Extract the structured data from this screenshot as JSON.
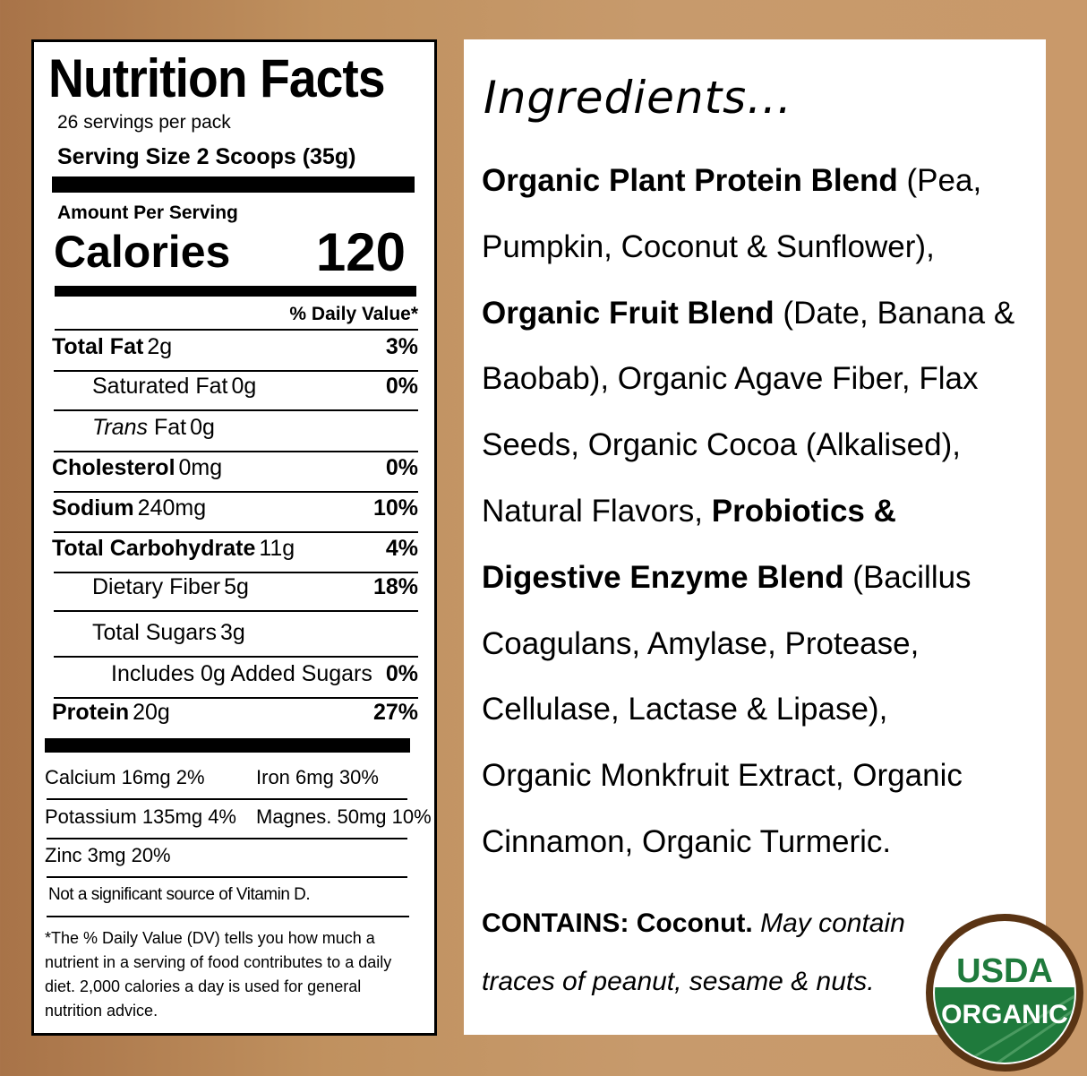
{
  "nutrition": {
    "title": "Nutrition Facts",
    "servings": "26 servings per pack",
    "serving_size": "Serving Size 2 Scoops (35g)",
    "amount_per_serving": "Amount Per Serving",
    "calories_label": "Calories",
    "calories_value": "120",
    "dv_header": "% Daily Value*",
    "rows": [
      {
        "name": "Total Fat",
        "amount": "2g",
        "dv": "3%",
        "bold": true,
        "indent": 0
      },
      {
        "name": "Saturated Fat",
        "amount": "0g",
        "dv": "0%",
        "bold": false,
        "indent": 1
      },
      {
        "name": "Trans",
        "name2": " Fat",
        "amount": "0g",
        "dv": "",
        "bold": false,
        "indent": 1,
        "italic": true
      },
      {
        "name": "Cholesterol",
        "amount": "0mg",
        "dv": "0%",
        "bold": true,
        "indent": 0
      },
      {
        "name": "Sodium",
        "amount": "240mg",
        "dv": "10%",
        "bold": true,
        "indent": 0
      },
      {
        "name": "Total Carbohydrate",
        "amount": "11g",
        "dv": "4%",
        "bold": true,
        "indent": 0
      },
      {
        "name": "Dietary Fiber",
        "amount": "5g",
        "dv": "18%",
        "bold": false,
        "indent": 1
      },
      {
        "name": "Total Sugars",
        "amount": "3g",
        "dv": "",
        "bold": false,
        "indent": 1
      },
      {
        "name": "Includes 0g Added Sugars",
        "amount": "",
        "dv": "0%",
        "bold": false,
        "indent": 2
      },
      {
        "name": "Protein",
        "amount": "20g",
        "dv": "27%",
        "bold": true,
        "indent": 0
      }
    ],
    "minerals": [
      [
        "Calcium  16mg 2%",
        "Iron 6mg 30%"
      ],
      [
        "Potassium 135mg 4%",
        "Magnes. 50mg 10%"
      ],
      [
        "Zinc  3mg 20%",
        ""
      ]
    ],
    "vitamin_note": "Not a significant source of Vitamin D.",
    "footnote": "*The % Daily Value (DV) tells you how much a nutrient in a serving of food contributes to a daily diet. 2,000 calories a day is used for general nutrition advice."
  },
  "ingredients": {
    "title": "Ingredients...",
    "lines": [
      [
        {
          "t": "Organic Plant Protein Blend",
          "b": true
        },
        {
          "t": " (Pea,",
          "b": false
        }
      ],
      [
        {
          "t": "Pumpkin, Coconut & Sunflower),",
          "b": false
        }
      ],
      [
        {
          "t": "Organic Fruit Blend",
          "b": true
        },
        {
          "t": " (Date, Banana &",
          "b": false
        }
      ],
      [
        {
          "t": "Baobab), Organic Agave Fiber, Flax",
          "b": false
        }
      ],
      [
        {
          "t": "Seeds, Organic Cocoa (Alkalised),",
          "b": false
        }
      ],
      [
        {
          "t": "Natural Flavors, ",
          "b": false
        },
        {
          "t": "Probiotics &",
          "b": true
        }
      ],
      [
        {
          "t": "Digestive Enzyme Blend",
          "b": true
        },
        {
          "t": " (Bacillus",
          "b": false
        }
      ],
      [
        {
          "t": "Coagulans, Amylase, Protease,",
          "b": false
        }
      ],
      [
        {
          "t": "Cellulase, Lactase & Lipase),",
          "b": false
        }
      ],
      [
        {
          "t": "Organic Monkfruit Extract, Organic",
          "b": false
        }
      ],
      [
        {
          "t": "Cinnamon, Organic Turmeric.",
          "b": false
        }
      ]
    ],
    "contains_label": "CONTAINS: Coconut.",
    "contains_note_1": " May contain",
    "contains_note_2": "traces of peanut, sesame & nuts."
  },
  "badge": {
    "top": "USDA",
    "bottom": "ORGANIC",
    "green": "#1f7a3c",
    "brown": "#5a3414"
  }
}
